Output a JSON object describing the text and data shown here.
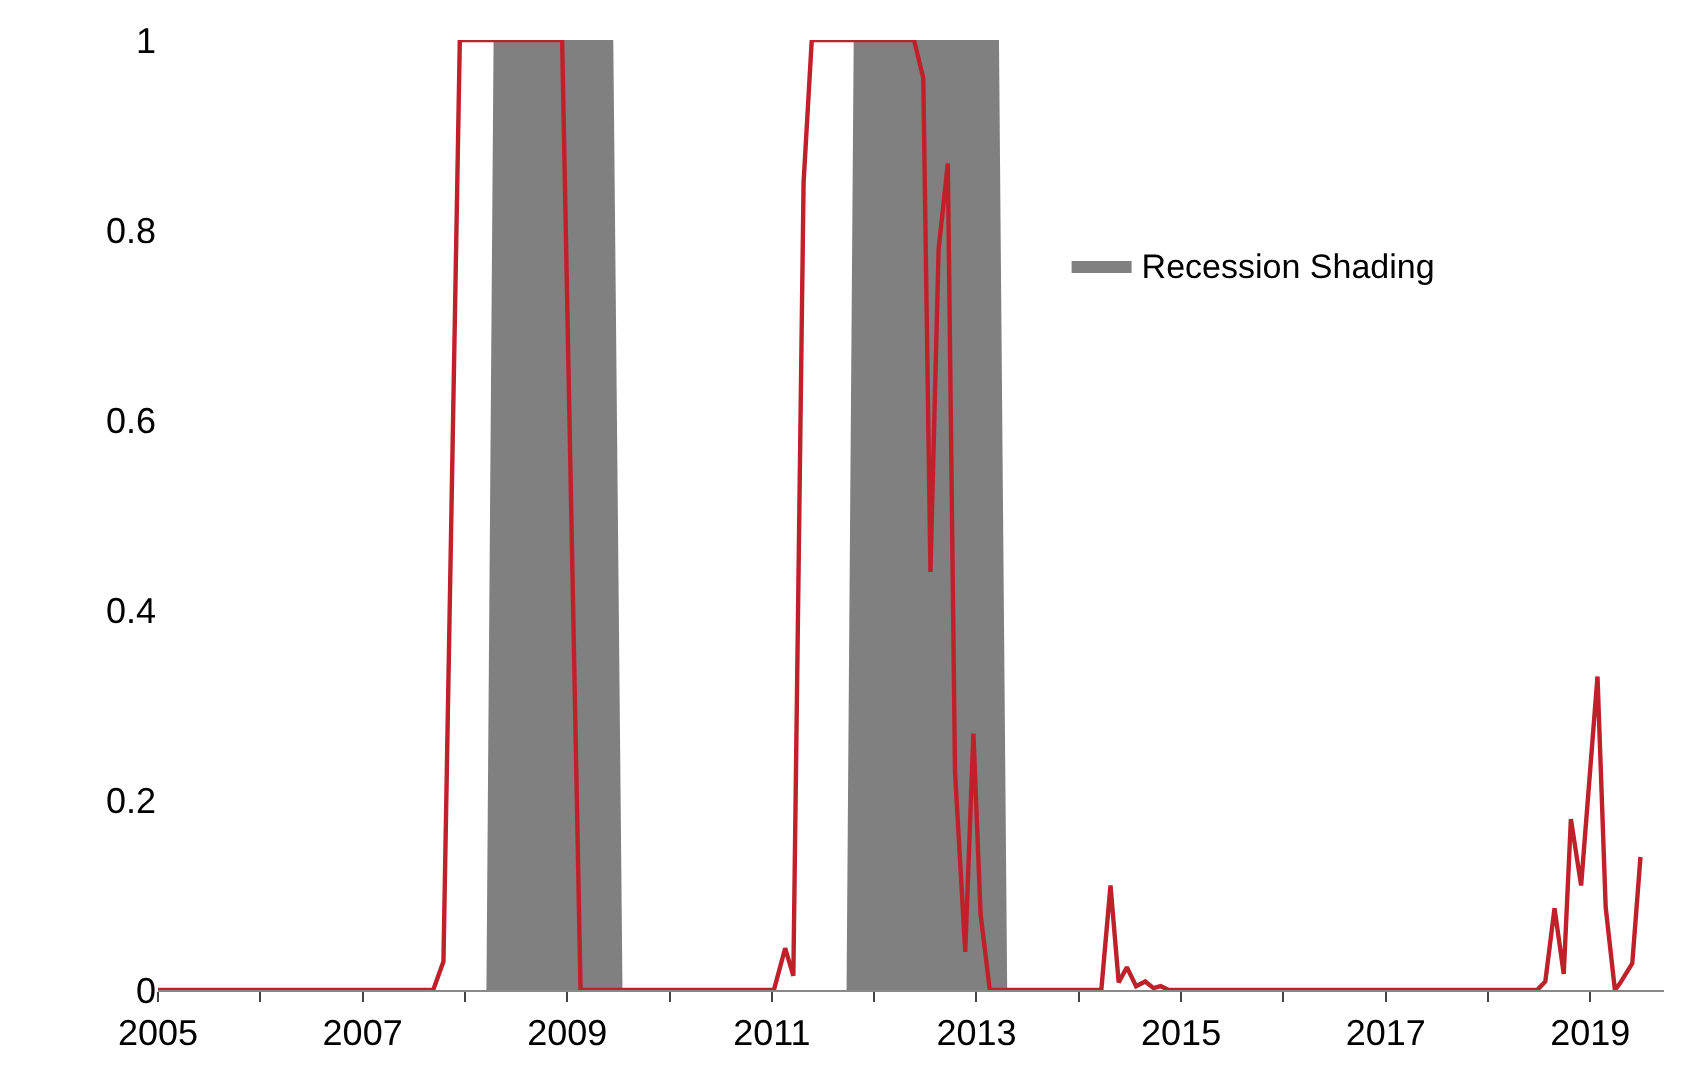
{
  "chart_data": {
    "type": "line",
    "series": [
      {
        "type": "area",
        "name": "Recession Shading",
        "color": "#808080",
        "x": [
          2005,
          2008.21,
          2008.28,
          2009.45,
          2009.54,
          2011.73,
          2011.8,
          2013.22,
          2013.3,
          2019.72
        ],
        "values": [
          0,
          0,
          1,
          1,
          0,
          0,
          1,
          1,
          0,
          0
        ]
      },
      {
        "color": "#c0202a",
        "x": [
          2005,
          2007.69,
          2007.79,
          2007.95,
          2008.95,
          2009.13,
          2011.02,
          2011.13,
          2011.21,
          2011.31,
          2011.39,
          2012.39,
          2012.48,
          2012.55,
          2012.63,
          2012.72,
          2012.79,
          2012.89,
          2012.97,
          2013.04,
          2013.13,
          2014.22,
          2014.31,
          2014.39,
          2014.47,
          2014.56,
          2014.65,
          2014.73,
          2014.8,
          2014.88,
          2018.48,
          2018.56,
          2018.65,
          2018.74,
          2018.81,
          2018.91,
          2019.07,
          2019.15,
          2019.24,
          2019.29,
          2019.41,
          2019.49
        ],
        "values": [
          0,
          0,
          0.03,
          1,
          1,
          0,
          0,
          0.044,
          0.015,
          0.85,
          1,
          1,
          0.96,
          0.44,
          0.78,
          0.87,
          0.23,
          0.04,
          0.27,
          0.08,
          0,
          0,
          0.11,
          0.008,
          0.024,
          0.004,
          0.009,
          0.002,
          0.004,
          0,
          0,
          0.009,
          0.086,
          0.017,
          0.18,
          0.11,
          0.33,
          0.087,
          0,
          0.007,
          0.028,
          0.14
        ]
      }
    ],
    "xlim": [
      2005,
      2019.72
    ],
    "ylim": [
      0,
      1
    ],
    "xticks": [
      2005,
      {
        "value": 2006,
        "label": null
      },
      2007,
      {
        "value": 2008,
        "label": null
      },
      2009,
      {
        "value": 2010,
        "label": null
      },
      2011,
      {
        "value": 2012,
        "label": null
      },
      2013,
      {
        "value": 2014,
        "label": null
      },
      2015,
      {
        "value": 2016,
        "label": null
      },
      2017,
      {
        "value": 2018,
        "label": null
      },
      2019
    ],
    "yticks": [
      0,
      0.2,
      0.4,
      0.6,
      0.8,
      1
    ],
    "legend": "top right",
    "marker": "none",
    "line_style": "solid"
  }
}
